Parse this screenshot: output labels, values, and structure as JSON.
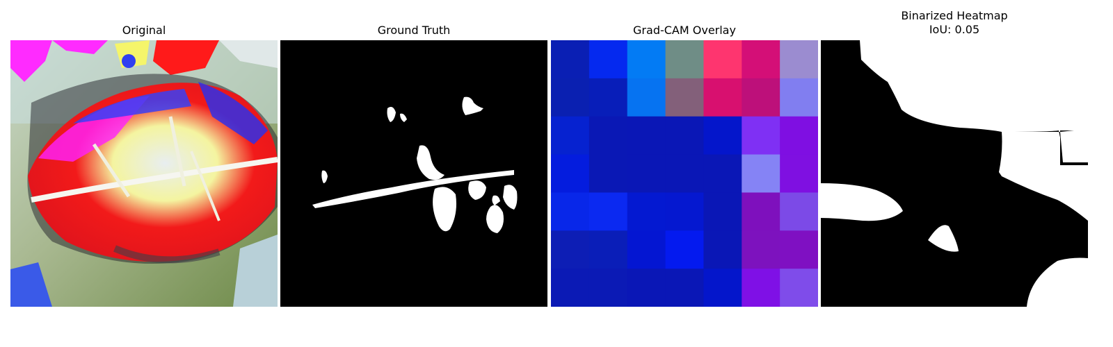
{
  "panels": [
    {
      "title": "Original"
    },
    {
      "title": "Ground Truth"
    },
    {
      "title": "Grad-CAM Overlay"
    },
    {
      "title": "Binarized Heatmap",
      "subtitle": "IoU: 0.05"
    }
  ],
  "gradcam_grid": [
    [
      "#0a1fb4",
      "#0529ef",
      "#037bf4",
      "#6f8d86",
      "#fe356f",
      "#d40f77",
      "#9b8cd0"
    ],
    [
      "#0a20b1",
      "#081eb9",
      "#0673f1",
      "#83607a",
      "#d8106f",
      "#bd107a",
      "#817ef0"
    ],
    [
      "#0622d0",
      "#0a18b5",
      "#0a17b6",
      "#0a17b6",
      "#0416cb",
      "#7f30f4",
      "#7f0fe2"
    ],
    [
      "#041cde",
      "#0a18b5",
      "#0a17b6",
      "#0a17b6",
      "#0a17b6",
      "#8583f5",
      "#7f10e1"
    ],
    [
      "#0827e9",
      "#0b29f1",
      "#0419d1",
      "#0518d0",
      "#0a17b6",
      "#7e10bd",
      "#7c4ae7"
    ],
    [
      "#0d1eb5",
      "#0a1eb8",
      "#0416d2",
      "#041aef",
      "#0a17b6",
      "#7d12be",
      "#7f10c2"
    ],
    [
      "#0b1ab5",
      "#0b1ab5",
      "#0a17b6",
      "#0a17b6",
      "#0416cb",
      "#7f10e6",
      "#7f4cea"
    ]
  ]
}
